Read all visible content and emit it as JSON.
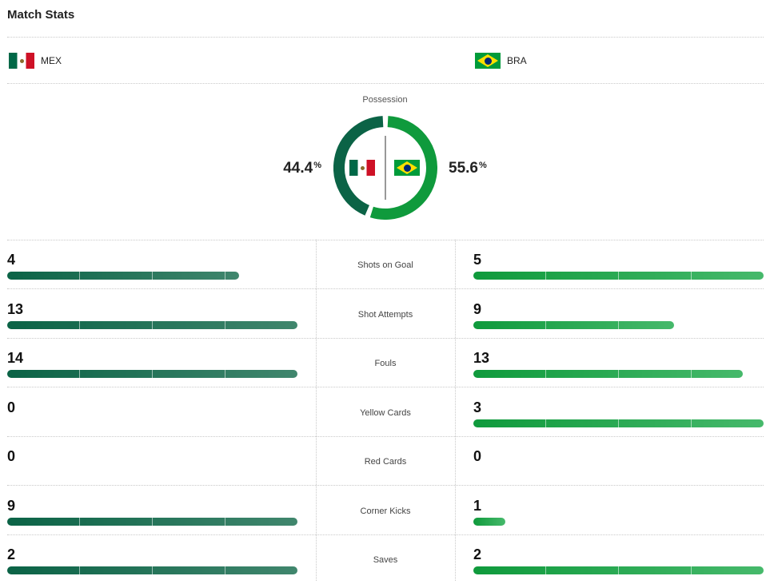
{
  "title": "Match Stats",
  "teams": {
    "home": {
      "abbr": "MEX",
      "flag": "mexico-flag-icon",
      "color": "#0b6346"
    },
    "away": {
      "abbr": "BRA",
      "flag": "brazil-flag-icon",
      "color": "#0f9a3c"
    }
  },
  "possession": {
    "label": "Possession",
    "home_value": "44.4",
    "away_value": "55.6",
    "unit": "%",
    "home_fraction": 0.444,
    "away_fraction": 0.556
  },
  "stats": [
    {
      "label": "Shots on Goal",
      "home": 4,
      "away": 5
    },
    {
      "label": "Shot Attempts",
      "home": 13,
      "away": 9
    },
    {
      "label": "Fouls",
      "home": 14,
      "away": 13
    },
    {
      "label": "Yellow Cards",
      "home": 0,
      "away": 3
    },
    {
      "label": "Red Cards",
      "home": 0,
      "away": 0
    },
    {
      "label": "Corner Kicks",
      "home": 9,
      "away": 1
    },
    {
      "label": "Saves",
      "home": 2,
      "away": 2
    }
  ]
}
